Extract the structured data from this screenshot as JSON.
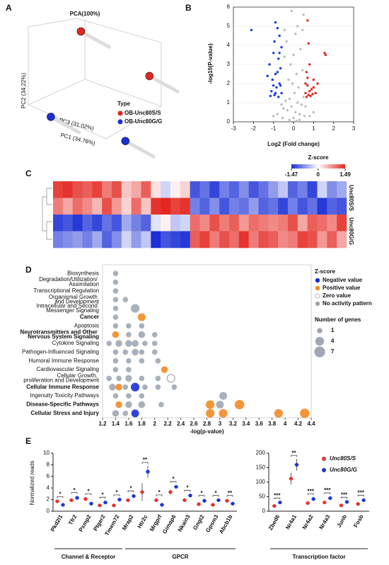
{
  "chart_data": [
    {
      "type": "scatter3d",
      "panel": "A",
      "title": "PCA(100%)",
      "xlabel": "PC1 (34.76%)",
      "ylabel": "PC2 (34.22%)",
      "zlabel": "PC3 (31.02%)",
      "legend_title": "Type",
      "xlim": [
        0,
        1
      ],
      "ylim": [
        0,
        1
      ],
      "series": [
        {
          "name": "OB-Unc80S/S",
          "color": "#e3261f",
          "x": [
            0.32,
            0.89
          ],
          "values": [
            0.92,
            0.57
          ]
        },
        {
          "name": "OB-Unc80G/G",
          "color": "#1b2fd6",
          "x": [
            0.07,
            0.69
          ],
          "values": [
            0.25,
            0.06
          ]
        }
      ]
    },
    {
      "type": "scatter",
      "panel": "B",
      "xlabel": "Log2 (Fold change)",
      "ylabel": "-log10(P-value)",
      "xlim": [
        -3,
        3
      ],
      "xticks": [
        -3,
        -2,
        -1,
        0,
        1,
        2,
        3
      ],
      "ylim": [
        0,
        6
      ],
      "yticks": [
        0,
        1,
        2,
        3,
        4,
        5,
        6
      ],
      "grid": true,
      "series": [
        {
          "color": "#bdbdbd",
          "x": [
            0,
            0.1,
            -0.1,
            0.2,
            -0.2,
            0.3,
            -0.3,
            0.05,
            -0.05,
            0.15,
            -0.15,
            0.25,
            -0.25,
            0.4,
            -0.4,
            0.45,
            -0.45,
            0.5,
            -0.5,
            0.35,
            -0.35,
            0.1,
            -0.1,
            0.2,
            0,
            0.3,
            -0.2,
            0.55,
            -0.55,
            0.6,
            -0.6,
            0.8,
            -0.8,
            1.0,
            -1.0,
            0.15,
            0.5,
            0.45,
            -0.45,
            0.02
          ],
          "values": [
            0.2,
            0.5,
            0.8,
            1.0,
            1.2,
            0.4,
            0.6,
            1.5,
            2.0,
            2.5,
            3.0,
            1.8,
            2.2,
            0.9,
            1.1,
            2.7,
            3.4,
            1.3,
            0.7,
            3.8,
            4.2,
            4.6,
            5.8,
            5.0,
            3.5,
            0.1,
            0.1,
            0.3,
            0.2,
            0.8,
            0.9,
            0.3,
            0.4,
            0.5,
            0.3,
            0.05,
            5.6,
            4.8,
            4.8,
            6.0
          ]
        },
        {
          "color": "#1b3be0",
          "x": [
            -2.1,
            -0.9,
            -0.8,
            -0.7,
            -0.95,
            -0.6,
            -1.0,
            -0.75,
            -1.2,
            -0.65,
            -0.9,
            -1.05,
            -0.7,
            -0.85,
            -1.1,
            -0.6,
            -0.95,
            -0.75,
            -1.15,
            -0.65,
            -0.8,
            -1.3,
            -0.7,
            -0.9,
            -1.0
          ],
          "values": [
            4.8,
            5.2,
            4.9,
            4.5,
            4.2,
            3.9,
            3.6,
            3.3,
            3.0,
            2.8,
            2.5,
            2.2,
            2.0,
            1.8,
            1.6,
            1.5,
            1.4,
            1.3,
            1.35,
            1.9,
            2.6,
            2.4,
            3.6,
            1.5,
            1.9
          ]
        },
        {
          "color": "#e3261f",
          "x": [
            0.7,
            0.75,
            1.55,
            1.6,
            0.8,
            0.65,
            1.0,
            0.7,
            0.9,
            0.6,
            0.75,
            1.1,
            0.85,
            0.65,
            1.0,
            1.2,
            0.7,
            0.95,
            0.6,
            0.8
          ],
          "values": [
            5.3,
            4.1,
            3.6,
            3.5,
            3.0,
            2.6,
            2.2,
            1.9,
            1.7,
            1.5,
            1.4,
            1.5,
            1.35,
            1.3,
            1.8,
            2.0,
            2.3,
            1.45,
            2.0,
            1.6
          ]
        }
      ]
    },
    {
      "type": "heatmap",
      "panel": "C",
      "colorbar_title": "Z-score",
      "zlim": [
        -1.47,
        1.49
      ],
      "zticks": [
        -1.47,
        0,
        1.49
      ],
      "colors": [
        "#1b2fd6",
        "#ffffff",
        "#e3261f"
      ],
      "row_groups": [
        "Unc80S/S",
        "Unc80S/S",
        "Unc80G/G",
        "Unc80G/G"
      ],
      "values": [
        [
          1.3,
          1.4,
          1.2,
          1.1,
          1.3,
          0.9,
          1.2,
          0.4,
          0.6,
          1.1,
          0.2,
          -0.3,
          0.1,
          0.3,
          -1.2,
          -1.0,
          -1.3,
          -0.9,
          -1.1,
          -0.8,
          -1.2,
          -1.0,
          -0.7,
          -0.4,
          -1.1,
          -0.9,
          -1.3,
          -0.3,
          -0.8,
          -0.6
        ],
        [
          0.9,
          0.6,
          1.0,
          0.8,
          0.5,
          1.2,
          0.7,
          0.3,
          1.0,
          0.4,
          1.4,
          1.49,
          1.3,
          1.4,
          -0.9,
          -1.1,
          -0.8,
          -1.2,
          -0.9,
          -1.0,
          -0.7,
          -1.1,
          -1.0,
          -1.3,
          -0.9,
          -1.2,
          -1.0,
          -1.4,
          -1.1,
          -1.2
        ],
        [
          -1.3,
          -1.2,
          -1.4,
          -1.1,
          -1.3,
          -1.0,
          -1.2,
          -0.6,
          -0.9,
          -1.1,
          -0.2,
          0.1,
          -0.4,
          -0.3,
          1.0,
          0.8,
          1.2,
          0.9,
          1.1,
          0.7,
          1.0,
          0.9,
          0.8,
          0.9,
          1.2,
          0.6,
          1.1,
          1.0,
          0.8,
          1.3
        ],
        [
          -0.9,
          -0.8,
          -0.7,
          -0.9,
          -0.6,
          -1.1,
          -0.8,
          -0.3,
          -0.7,
          -0.4,
          -1.47,
          -1.2,
          -1.3,
          -1.4,
          1.1,
          1.3,
          0.9,
          1.2,
          1.0,
          1.4,
          0.9,
          1.2,
          1.1,
          0.8,
          0.9,
          1.3,
          1.2,
          0.7,
          1.1,
          0.6
        ]
      ]
    },
    {
      "type": "bubble",
      "panel": "D",
      "xlabel": "-log(p-value)",
      "xlim": [
        1.2,
        4.4
      ],
      "xticks": [
        1.2,
        1.4,
        1.6,
        1.8,
        2.0,
        2.2,
        2.4,
        2.6,
        2.8,
        3.0,
        3.2,
        3.4,
        3.6,
        3.8,
        4.0,
        4.2,
        4.4
      ],
      "categories": [
        "Biosynthesis",
        "Degradation/Utilization/ Assimilation",
        "Transcriptional Regulation",
        "Organismal Growth and Development",
        "Intracellular and Second Messenger Signaling",
        "Cancer",
        "Apoptosis",
        "Neurotransmitters and Other Nervous System Signaling",
        "Cytokine Signaling",
        "Pathogen-Influenced Signaling",
        "Humoral Immune Response",
        "Cardiovascular Signaling",
        "Cellular Growth, proliferation and Development",
        "Cellular Immune Response",
        "Ingenuity Toxicity Pathways",
        "Disease-Specific Pathways",
        "Cellular Stress and Injury"
      ],
      "bold_categories": [
        "Cancer",
        "Neurotransmitters and Other Nervous System Signaling",
        "Cellular Immune Response",
        "Disease-Specific Pathways",
        "Cellular Stress and Injury"
      ],
      "legend_title": "Z-score",
      "size_title": "Number of genes",
      "size_legend": [
        1,
        4,
        7
      ],
      "series": [
        {
          "name": "Negative value",
          "color": "#1b2fd6",
          "x": [
            1.7,
            1.7
          ],
          "y": [
            "Cellular Immune Response",
            "Cellular Stress and Injury"
          ],
          "sizes": [
            4,
            3
          ]
        },
        {
          "name": "Positive value",
          "color": "#f28a24",
          "x": [
            1.8,
            1.4,
            2.15,
            1.45,
            1.45,
            2.85,
            3.3,
            2.85,
            3.05,
            3.9,
            4.3
          ],
          "y": [
            "Cancer",
            "Neurotransmitters and Other Nervous System Signaling",
            "Cardiovascular Signaling",
            "Cellular Immune Response",
            "Disease-Specific Pathways",
            "Disease-Specific Pathways",
            "Disease-Specific Pathways",
            "Cellular Stress and Injury",
            "Cellular Stress and Injury",
            "Cellular Stress and Injury",
            "Cellular Stress and Injury"
          ],
          "sizes": [
            3,
            2,
            2,
            2,
            2,
            4,
            5,
            4,
            4,
            4,
            5
          ]
        },
        {
          "name": "Zero value",
          "color": "#ffffff",
          "x": [
            2.25
          ],
          "y": [
            "Cellular Growth, proliferation and Development"
          ],
          "sizes": [
            3
          ]
        },
        {
          "name": "No activity pattern",
          "color": "#9ea7b3",
          "x": [
            1.4,
            1.4,
            1.4,
            1.4,
            1.55,
            1.4,
            1.7,
            1.4,
            1.4,
            1.6,
            1.8,
            1.6,
            1.8,
            2.0,
            1.3,
            1.45,
            1.6,
            1.7,
            1.85,
            2.0,
            1.4,
            1.55,
            1.7,
            1.8,
            2.0,
            1.4,
            1.6,
            1.8,
            2.05,
            1.4,
            1.6,
            1.3,
            1.45,
            1.6,
            1.8,
            2.05,
            1.35,
            1.55,
            1.85,
            2.05,
            2.3,
            1.4,
            1.6,
            1.8,
            3.05,
            1.6,
            1.8,
            2.1,
            3.0,
            1.4,
            1.55
          ],
          "y": [
            "Biosynthesis",
            "Degradation/Utilization/ Assimilation",
            "Transcriptional Regulation",
            "Organismal Growth and Development",
            "Organismal Growth and Development",
            "Intracellular and Second Messenger Signaling",
            "Intracellular and Second Messenger Signaling",
            "Cancer",
            "Apoptosis",
            "Apoptosis",
            "Apoptosis",
            "Neurotransmitters and Other Nervous System Signaling",
            "Neurotransmitters and Other Nervous System Signaling",
            "Neurotransmitters and Other Nervous System Signaling",
            "Cytokine Signaling",
            "Cytokine Signaling",
            "Cytokine Signaling",
            "Cytokine Signaling",
            "Cytokine Signaling",
            "Cytokine Signaling",
            "Pathogen-Influenced Signaling",
            "Pathogen-Influenced Signaling",
            "Pathogen-Influenced Signaling",
            "Pathogen-Influenced Signaling",
            "Pathogen-Influenced Signaling",
            "Humoral Immune Response",
            "Humoral Immune Response",
            "Humoral Immune Response",
            "Humoral Immune Response",
            "Cardiovascular Signaling",
            "Cardiovascular Signaling",
            "Cellular Growth, proliferation and Development",
            "Cellular Growth, proliferation and Development",
            "Cellular Growth, proliferation and Development",
            "Cellular Growth, proliferation and Development",
            "Cellular Growth, proliferation and Development",
            "Cellular Immune Response",
            "Cellular Immune Response",
            "Cellular Immune Response",
            "Cellular Immune Response",
            "Cellular Immune Response",
            "Ingenuity Toxicity Pathways",
            "Ingenuity Toxicity Pathways",
            "Ingenuity Toxicity Pathways",
            "Ingenuity Toxicity Pathways",
            "Disease-Specific Pathways",
            "Disease-Specific Pathways",
            "Disease-Specific Pathways",
            "Disease-Specific Pathways",
            "Cellular Stress and Injury",
            "Cellular Stress and Injury"
          ],
          "sizes": [
            1,
            1,
            1,
            1,
            1,
            1,
            4,
            1,
            1,
            1,
            1,
            1,
            2,
            1,
            1,
            2,
            2,
            2,
            1,
            1,
            1,
            1,
            2,
            1,
            1,
            1,
            1,
            1,
            1,
            1,
            1,
            1,
            1,
            2,
            1,
            1,
            2,
            1,
            1,
            1,
            1,
            1,
            1,
            1,
            3,
            2,
            2,
            1,
            3,
            2,
            1
          ]
        }
      ]
    },
    {
      "type": "dot",
      "panel": "E",
      "ylabel": "Normalized reads",
      "categories": [
        "Pkd2l1",
        "Tfr2",
        "Pxmp2",
        "Ptger2",
        "Tmem72",
        "Mrap2",
        "Htr2c",
        "Mrgprf",
        "Gimap6",
        "Nkain3",
        "Gngt2",
        "Gpsm3",
        "Abcb1b",
        "Zbed6",
        "Nr4a1",
        "Nr4a2",
        "Nr4a3",
        "Junb",
        "Fosb"
      ],
      "significance": [
        "*",
        "*",
        "*",
        "*",
        "*",
        "*",
        "**",
        "*",
        "*",
        "*",
        "*",
        "*",
        "**",
        "***",
        "**",
        "***",
        "***",
        "***",
        "***"
      ],
      "subplots": [
        {
          "ylim": [
            0,
            10
          ],
          "yticks": [
            0,
            2,
            4,
            6,
            8,
            10
          ],
          "groups": [
            {
              "label": "Channel & Receptor",
              "categories": [
                "Pkd2l1",
                "Tfr2",
                "Pxmp2",
                "Ptger2",
                "Tmem72"
              ]
            },
            {
              "label": "GPCR",
              "categories": [
                "Mrap2",
                "Htr2c",
                "Mrgprf",
                "Gimap6",
                "Nkain3",
                "Gngt2",
                "Gpsm3",
                "Abcb1b"
              ]
            }
          ]
        },
        {
          "ylim": [
            0,
            200
          ],
          "yticks": [
            0,
            50,
            100,
            150,
            200
          ],
          "groups": [
            {
              "label": "Transcription factor",
              "categories": [
                "Zbed6",
                "Nr4a1",
                "Nr4a2",
                "Nr4a3",
                "Junb",
                "Fosb"
              ]
            }
          ]
        }
      ],
      "series": [
        {
          "name": "Unc80S/S",
          "color": "#e8322c",
          "values": [
            1.7,
            1.9,
            2.1,
            1.0,
            1.0,
            1.9,
            3.3,
            1.9,
            3.3,
            1.9,
            1.2,
            1.1,
            1.8,
            18,
            112,
            28,
            30,
            20,
            25
          ],
          "errors": [
            0.2,
            0.3,
            0.3,
            0.15,
            0.1,
            0.2,
            1.5,
            0.3,
            0.4,
            0.2,
            0.15,
            0.15,
            0.3,
            4,
            20,
            4,
            4,
            3,
            4
          ]
        },
        {
          "name": "Unc80G/G",
          "color": "#1d35d8",
          "values": [
            1.1,
            2.3,
            1.3,
            1.5,
            2.0,
            2.6,
            6.8,
            1.1,
            4.2,
            2.7,
            1.8,
            1.9,
            1.3,
            30,
            160,
            42,
            45,
            32,
            38
          ],
          "errors": [
            0.15,
            0.3,
            0.2,
            0.3,
            0.2,
            0.3,
            1.0,
            0.2,
            0.3,
            0.3,
            0.3,
            0.2,
            0.2,
            3,
            20,
            6,
            6,
            4,
            5
          ]
        }
      ]
    }
  ]
}
